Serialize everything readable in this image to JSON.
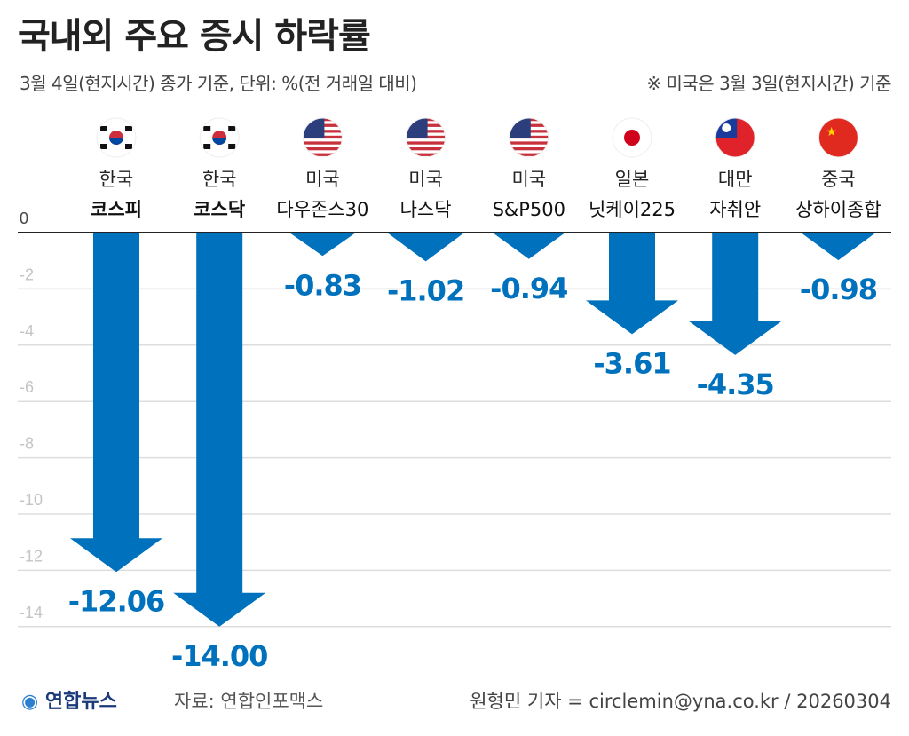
{
  "title": "국내외 주요 증시 하락률",
  "subtitle": "3월 4일(현지시간) 종가 기준, 단위: %(전 거래일 대비)",
  "note": "※ 미국은 3월 3일(현지시간) 기준",
  "footer": {
    "logo": "연합뉴스",
    "source": "자료: 연합인포맥스",
    "author": "원형민 기자 = circlemin@yna.co.kr / 20260304"
  },
  "colors": {
    "bar": "#0071bc",
    "grid": "#dddddd",
    "axis": "#222222",
    "tick": "#c4c4c4"
  },
  "chart_data": {
    "type": "bar",
    "title": "국내외 주요 증시 하락률",
    "categories": [
      {
        "line1": "한국",
        "line2": "코스피",
        "flag": "kr",
        "bold": true
      },
      {
        "line1": "한국",
        "line2": "코스닥",
        "flag": "kr",
        "bold": true
      },
      {
        "line1": "미국",
        "line2": "다우존스30",
        "flag": "us"
      },
      {
        "line1": "미국",
        "line2": "나스닥",
        "flag": "us"
      },
      {
        "line1": "미국",
        "line2": "S&P500",
        "flag": "us"
      },
      {
        "line1": "일본",
        "line2": "닛케이225",
        "flag": "jp"
      },
      {
        "line1": "대만",
        "line2": "자취안",
        "flag": "tw"
      },
      {
        "line1": "중국",
        "line2": "상하이종합",
        "flag": "cn"
      }
    ],
    "values": [
      -12.06,
      -14.0,
      -0.83,
      -1.02,
      -0.94,
      -3.61,
      -4.35,
      -0.98
    ],
    "labels": [
      "-12.06",
      "-14.00",
      "-0.83",
      "-1.02",
      "-0.94",
      "-3.61",
      "-4.35",
      "-0.98"
    ],
    "ylim": [
      -14,
      0
    ],
    "yticks": [
      "0",
      "-2",
      "-4",
      "-6",
      "-8",
      "-10",
      "-12",
      "-14"
    ],
    "grid": true,
    "mark": "down-arrow"
  }
}
